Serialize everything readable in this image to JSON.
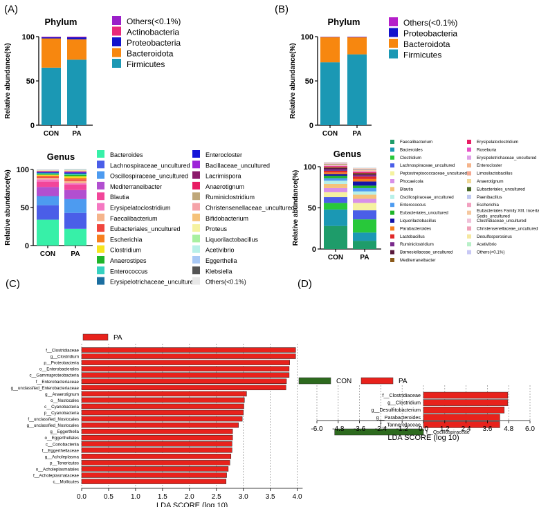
{
  "panels": {
    "A": "(A)",
    "B": "(B)",
    "C": "(C)",
    "D": "(D)"
  },
  "colors": {
    "CON": "#2d6a1e",
    "PA": "#e8221c"
  },
  "chart_data": [
    {
      "id": "A-phylum",
      "type": "bar",
      "stacked": true,
      "title": "Phylum",
      "ylabel": "Relative abundance(%)",
      "ylim": [
        0,
        100
      ],
      "yticks": [
        0,
        50,
        100
      ],
      "categories": [
        "CON",
        "PA"
      ],
      "series": [
        {
          "name": "Firmicutes",
          "color": "#1b98b4",
          "values": [
            65,
            74
          ]
        },
        {
          "name": "Bacteroidota",
          "color": "#f7870f",
          "values": [
            33,
            23
          ]
        },
        {
          "name": "Proteobacteria",
          "color": "#1212cc",
          "values": [
            1.2,
            2.2
          ]
        },
        {
          "name": "Actinobacteria",
          "color": "#e8287a",
          "values": [
            0.3,
            0.4
          ]
        },
        {
          "name": "Others(<0.1%)",
          "color": "#9b1fc9",
          "values": [
            0.5,
            0.4
          ]
        }
      ]
    },
    {
      "id": "A-genus",
      "type": "bar",
      "stacked": true,
      "title": "Genus",
      "ylabel": "Relative abundance(%)",
      "ylim": [
        0,
        100
      ],
      "yticks": [
        0,
        50,
        100
      ],
      "categories": [
        "CON",
        "PA"
      ],
      "series": [
        {
          "name": "Bacteroides",
          "color": "#37f0a8",
          "values": [
            34,
            22
          ]
        },
        {
          "name": "Lachnospiraceae_uncultured",
          "color": "#4a5ee8",
          "values": [
            19,
            21
          ]
        },
        {
          "name": "Oscillospiraceae_uncultured",
          "color": "#4d9bf0",
          "values": [
            12,
            18
          ]
        },
        {
          "name": "Mediterraneibacter",
          "color": "#b24fd0",
          "values": [
            12,
            12
          ]
        },
        {
          "name": "Blautia",
          "color": "#f2469a",
          "values": [
            7,
            7
          ]
        },
        {
          "name": "Erysipelatoclostridium",
          "color": "#f578c2",
          "values": [
            3,
            2
          ]
        },
        {
          "name": "Faecalibacterium",
          "color": "#f5b48b",
          "values": [
            2,
            3
          ]
        },
        {
          "name": "Eubacteriales_uncultured",
          "color": "#f0453d",
          "values": [
            1.5,
            2
          ]
        },
        {
          "name": "Escherichia",
          "color": "#f77f1e",
          "values": [
            1.5,
            2
          ]
        },
        {
          "name": "Clostridium",
          "color": "#f5e51e",
          "values": [
            1,
            2
          ]
        },
        {
          "name": "Anaerostipes",
          "color": "#1fb52a",
          "values": [
            1,
            2
          ]
        },
        {
          "name": "Enterococcus",
          "color": "#36d1c0",
          "values": [
            1,
            1
          ]
        },
        {
          "name": "Erysipelotrichaceae_uncultured",
          "color": "#1b6ea0",
          "values": [
            0.8,
            1
          ]
        },
        {
          "name": "Enterocloster",
          "color": "#1414d8",
          "values": [
            0.6,
            1
          ]
        },
        {
          "name": "Bacillaceae_uncultured",
          "color": "#9d23d8",
          "values": [
            0.5,
            0.5
          ]
        },
        {
          "name": "Lacrimispora",
          "color": "#8c1a6b",
          "values": [
            0.4,
            0.5
          ]
        },
        {
          "name": "Anaerotignum",
          "color": "#e81c63",
          "values": [
            0.4,
            0.5
          ]
        },
        {
          "name": "Ruminiclostridium",
          "color": "#bfa77a",
          "values": [
            0.3,
            0.4
          ]
        },
        {
          "name": "Christensenellaceae_uncultured",
          "color": "#f5a3a8",
          "values": [
            0.3,
            0.4
          ]
        },
        {
          "name": "Bifidobacterium",
          "color": "#f5c27a",
          "values": [
            0.3,
            0.4
          ]
        },
        {
          "name": "Proteus",
          "color": "#f5f2a0",
          "values": [
            0.2,
            0.3
          ]
        },
        {
          "name": "Liquorilactobacillus",
          "color": "#a8f0a0",
          "values": [
            0.2,
            0.3
          ]
        },
        {
          "name": "Acetivibrio",
          "color": "#b8f0e8",
          "values": [
            0.2,
            0.3
          ]
        },
        {
          "name": "Eggerthella",
          "color": "#a8c8f5",
          "values": [
            0.2,
            0.3
          ]
        },
        {
          "name": "Klebsiella",
          "color": "#555555",
          "values": [
            0.2,
            0.3
          ]
        },
        {
          "name": "Others(<0.1%)",
          "color": "#e8e8e8",
          "values": [
            0.4,
            0.5
          ]
        }
      ]
    },
    {
      "id": "B-phylum",
      "type": "bar",
      "stacked": true,
      "title": "Phylum",
      "ylabel": "Relative abundance(%)",
      "ylim": [
        0,
        100
      ],
      "yticks": [
        0,
        50,
        100
      ],
      "categories": [
        "CON",
        "PA"
      ],
      "series": [
        {
          "name": "Firmicutes",
          "color": "#1b98b4",
          "values": [
            71,
            80
          ]
        },
        {
          "name": "Bacteroidota",
          "color": "#f7870f",
          "values": [
            28.5,
            19.3
          ]
        },
        {
          "name": "Proteobacteria",
          "color": "#1212cc",
          "values": [
            0.3,
            0.4
          ]
        },
        {
          "name": "Others(<0.1%)",
          "color": "#b51fc9",
          "values": [
            0.2,
            0.3
          ]
        }
      ]
    },
    {
      "id": "B-genus",
      "type": "bar",
      "stacked": true,
      "title": "Genus",
      "ylabel": "Relative abundance(%)",
      "ylim": [
        0,
        100
      ],
      "yticks": [
        0,
        50,
        100
      ],
      "categories": [
        "CON",
        "PA"
      ],
      "series": [
        {
          "name": "Faecalibacterium",
          "color": "#1e9c6a",
          "values": [
            28,
            10
          ]
        },
        {
          "name": "Bacteroides",
          "color": "#1b98b4",
          "values": [
            20,
            10
          ]
        },
        {
          "name": "Clostridium",
          "color": "#28c83a",
          "values": [
            8,
            16
          ]
        },
        {
          "name": "Lachnospiraceae_uncultured",
          "color": "#4a5ee8",
          "values": [
            7,
            11
          ]
        },
        {
          "name": "Peptostreptococcaceae_uncultured",
          "color": "#f5f2a0",
          "values": [
            6,
            9
          ]
        },
        {
          "name": "Phocaeicola",
          "color": "#d890e8",
          "values": [
            5,
            5
          ]
        },
        {
          "name": "Blautia",
          "color": "#f5c27a",
          "values": [
            5,
            5
          ]
        },
        {
          "name": "Oscillospiraceae_uncultured",
          "color": "#b8f0e8",
          "values": [
            4,
            4
          ]
        },
        {
          "name": "Enterococcus",
          "color": "#4d9bf0",
          "values": [
            3,
            4
          ]
        },
        {
          "name": "Eubacteriales_uncultured",
          "color": "#1fb52a",
          "values": [
            3,
            3
          ]
        },
        {
          "name": "Liquorilactobacillus",
          "color": "#1414a8",
          "values": [
            2,
            5
          ]
        },
        {
          "name": "Parabacteroides",
          "color": "#f77f1e",
          "values": [
            2,
            3
          ]
        },
        {
          "name": "Lactobacillus",
          "color": "#e02828",
          "values": [
            2,
            3
          ]
        },
        {
          "name": "Ruminiclostridium",
          "color": "#7a2a8c",
          "values": [
            2,
            2
          ]
        },
        {
          "name": "Barnesiellaceae_uncultured",
          "color": "#5a1a3c",
          "values": [
            1.5,
            1.5
          ]
        },
        {
          "name": "Mediterraneibacter",
          "color": "#8b5a1a",
          "values": [
            1,
            1
          ]
        },
        {
          "name": "Erysipelatoclostridium",
          "color": "#e81c63",
          "values": [
            1,
            1
          ]
        },
        {
          "name": "Roseburia",
          "color": "#e850c8",
          "values": [
            0.5,
            0.5
          ]
        },
        {
          "name": "Erysipelotrichaceae_uncultured",
          "color": "#e0a0e8",
          "values": [
            0.5,
            0.5
          ]
        },
        {
          "name": "Enterocloster",
          "color": "#f5b48b",
          "values": [
            0.5,
            0.5
          ]
        },
        {
          "name": "Limosilactobacillus",
          "color": "#f5a890",
          "values": [
            0.5,
            0.5
          ]
        },
        {
          "name": "Anaerotignum",
          "color": "#f0d898",
          "values": [
            0.4,
            0.4
          ]
        },
        {
          "name": "Eubacteriales_uncultured",
          "color": "#4a6a28",
          "values": [
            0.4,
            0.4
          ]
        },
        {
          "name": "Paenibacillus",
          "color": "#c0c8f0",
          "values": [
            0.4,
            0.4
          ]
        },
        {
          "name": "Escherichia",
          "color": "#f2a0c0",
          "values": [
            0.4,
            0.4
          ]
        },
        {
          "name": "Eubacteriales Family XIII. Incertae Sedis_uncultured",
          "color": "#f5c8a0",
          "values": [
            0.3,
            0.3
          ]
        },
        {
          "name": "Clostridiaceae_uncultured",
          "color": "#f0c0d8",
          "values": [
            0.3,
            0.3
          ]
        },
        {
          "name": "Christensenellaceae_uncultured",
          "color": "#f0a0b8",
          "values": [
            0.3,
            0.3
          ]
        },
        {
          "name": "Desulfosporosinus",
          "color": "#f5e8a0",
          "values": [
            0.3,
            0.3
          ]
        },
        {
          "name": "Acetivibrio",
          "color": "#b8f0c8",
          "values": [
            0.3,
            0.3
          ]
        },
        {
          "name": "Others(<0.1%)",
          "color": "#c8c8f5",
          "values": [
            0.3,
            0.3
          ]
        }
      ]
    },
    {
      "id": "C-lda",
      "type": "bar",
      "orientation": "horizontal",
      "xlabel": "LDA SCORE (log 10)",
      "xlim": [
        0,
        4.1
      ],
      "xticks": [
        0.0,
        0.5,
        1.0,
        1.5,
        2.0,
        2.5,
        3.0,
        3.5,
        4.0
      ],
      "legend": [
        "PA"
      ],
      "categories": [
        "f__Clostridiaceae",
        "g__Clostridium",
        "p__Proteobacteria",
        "o__Enterobacterales",
        "c__Gammaproteobacteria",
        "f__Enterobacteriaceae",
        "g__unclassfied_Enterobacteriaceae",
        "g__Anaerotignum",
        "o__Nostocales",
        "c__Cyanobacteria",
        "p__Cyanobacteria",
        "f__unclassfied_Nostocales",
        "g__unclassfied_Nostocales",
        "g__Eggerthella",
        "o__Eggerthellales",
        "c__Coriobacteriia",
        "f__Eggerthellaceae",
        "g__Acholeplasma",
        "p__Tenericutes",
        "o__Acholeplasmatales",
        "f__Acholeplasmataceae",
        "c__Mollicutes"
      ],
      "values": [
        3.97,
        3.97,
        3.86,
        3.85,
        3.85,
        3.8,
        3.79,
        3.06,
        3.02,
        3.01,
        3.0,
        2.98,
        2.91,
        2.8,
        2.8,
        2.79,
        2.79,
        2.77,
        2.75,
        2.72,
        2.69,
        2.68
      ],
      "groups": [
        "PA",
        "PA",
        "PA",
        "PA",
        "PA",
        "PA",
        "PA",
        "PA",
        "PA",
        "PA",
        "PA",
        "PA",
        "PA",
        "PA",
        "PA",
        "PA",
        "PA",
        "PA",
        "PA",
        "PA",
        "PA",
        "PA"
      ]
    },
    {
      "id": "D-lda",
      "type": "bar",
      "orientation": "horizontal",
      "xlabel": "LDA SCORE (log 10)",
      "xlim": [
        -6.0,
        6.0
      ],
      "xticks": [
        -6.0,
        -4.8,
        -3.6,
        -2.4,
        -1.2,
        0.0,
        1.2,
        2.4,
        3.6,
        4.8,
        6.0
      ],
      "legend": [
        "CON",
        "PA"
      ],
      "categories": [
        "f__Clostridiaceae",
        "g__Clostridium",
        "g__Desulfitobacterium",
        "g__Parabacteroides",
        "f__Tannerellaceae",
        "f__Oscillospiraceae"
      ],
      "values": [
        4.75,
        4.75,
        4.55,
        4.3,
        4.3,
        -5.0
      ],
      "groups": [
        "PA",
        "PA",
        "PA",
        "PA",
        "PA",
        "CON"
      ]
    }
  ]
}
